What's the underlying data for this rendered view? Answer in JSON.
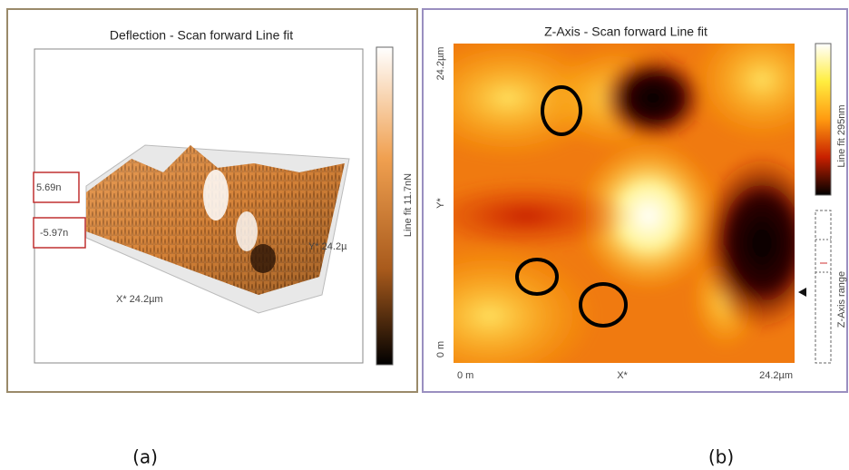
{
  "panels": [
    {
      "title": "Deflection - Scan forward   Line fit",
      "labels": {
        "max": "5.69n",
        "min": "-5.97n"
      },
      "x_axis": "X* 24.2µm",
      "y_axis": "Y* 24.2µ",
      "colorbar": "Line fit 11.7nN",
      "caption": "(a)"
    },
    {
      "title": "Z-Axis - Scan forward   Line fit",
      "y_axis": {
        "top": "24.2µm",
        "label": "Y*",
        "bottom": "0 m"
      },
      "x_axis": {
        "left": "0 m",
        "label": "X*",
        "right": "24.2µm"
      },
      "colorbar": "Line fit 295nm",
      "range_label": "Z-Axis range",
      "caption": "(b)"
    }
  ]
}
